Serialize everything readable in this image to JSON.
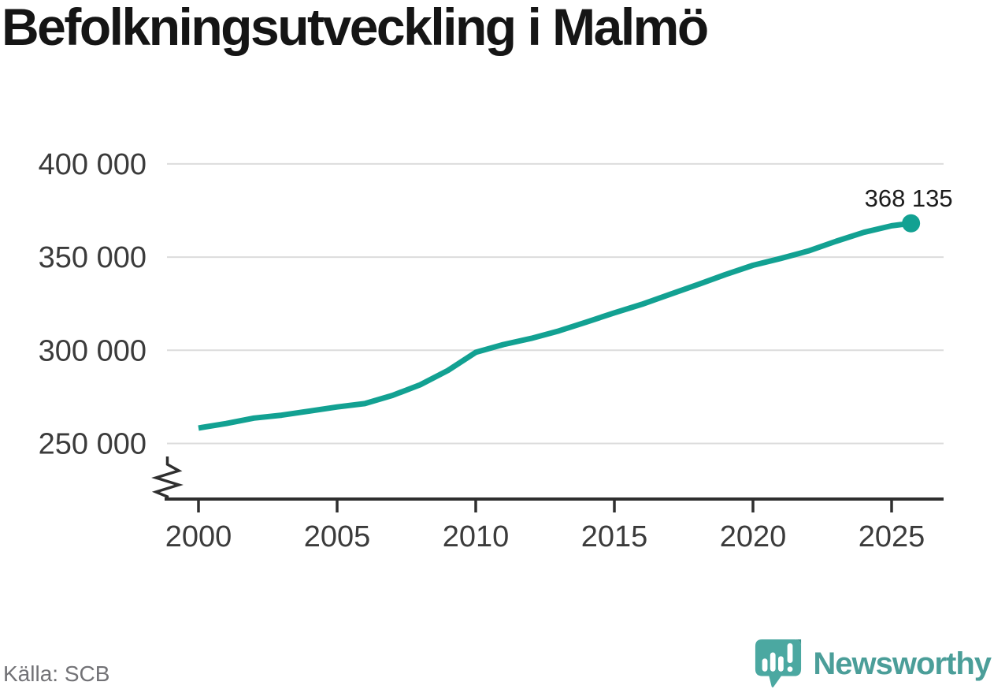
{
  "title": "Befolkningsutveckling i Malmö",
  "footer": {
    "source": "Källa: SCB",
    "brand": "Newsworthy"
  },
  "colors": {
    "accent_line_teal": "#12A192",
    "brand_text_teal": "#4B9E99",
    "brand_mark_teal": "#4BA8A1",
    "brand_mark_fold_teal": "#3B948D",
    "grid_gray": "#DCDCDC",
    "axis_dark": "#2F2F2F",
    "tick_label_gray": "#3B3B3B",
    "end_label_dark": "#1C1C1C"
  },
  "chart_data": {
    "type": "line",
    "title": "Befolkningsutveckling i Malmö",
    "xlabel": "",
    "ylabel": "",
    "grid": true,
    "legend": false,
    "axis_break": true,
    "xlim": [
      1998.8,
      2026.9
    ],
    "ylim_displayed": [
      250000,
      400000
    ],
    "x_axis": {
      "ticks": [
        {
          "value": 2000,
          "label": "2000"
        },
        {
          "value": 2005,
          "label": "2005"
        },
        {
          "value": 2010,
          "label": "2010"
        },
        {
          "value": 2015,
          "label": "2015"
        },
        {
          "value": 2020,
          "label": "2020"
        },
        {
          "value": 2025,
          "label": "2025"
        }
      ]
    },
    "y_axis": {
      "ticks": [
        {
          "value": 250000,
          "label": "250 000"
        },
        {
          "value": 300000,
          "label": "300 000"
        },
        {
          "value": 350000,
          "label": "350 000"
        },
        {
          "value": 400000,
          "label": "400 000"
        }
      ]
    },
    "series": [
      {
        "color": "#12A192",
        "points": [
          [
            2000,
            258300
          ],
          [
            2001,
            260700
          ],
          [
            2002,
            263600
          ],
          [
            2003,
            265200
          ],
          [
            2004,
            267400
          ],
          [
            2005,
            269600
          ],
          [
            2006,
            271400
          ],
          [
            2007,
            275800
          ],
          [
            2008,
            281500
          ],
          [
            2009,
            289200
          ],
          [
            2010,
            298900
          ],
          [
            2011,
            303100
          ],
          [
            2012,
            306400
          ],
          [
            2013,
            310400
          ],
          [
            2014,
            315200
          ],
          [
            2015,
            320100
          ],
          [
            2016,
            324700
          ],
          [
            2017,
            330000
          ],
          [
            2018,
            335200
          ],
          [
            2019,
            340600
          ],
          [
            2020,
            345600
          ],
          [
            2021,
            349300
          ],
          [
            2022,
            353300
          ],
          [
            2023,
            358500
          ],
          [
            2024,
            363300
          ],
          [
            2025,
            366800
          ],
          [
            2025.7,
            368135
          ]
        ]
      }
    ],
    "end_label": {
      "text": "368 135",
      "value": 368135,
      "x": 2025.7
    }
  }
}
